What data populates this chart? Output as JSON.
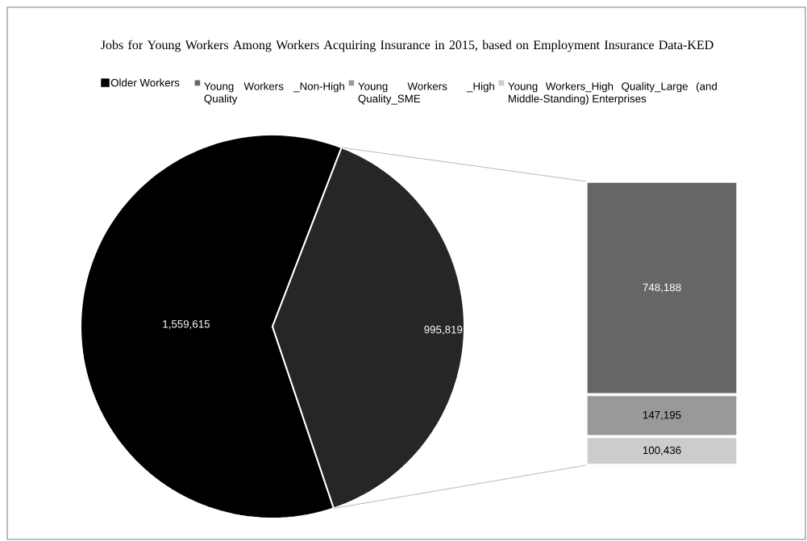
{
  "chart_data": [
    {
      "type": "pie",
      "title": "Jobs for Young Workers Among Workers Acquiring Insurance in 2015, based on Employment Insurance Data-KED",
      "categories": [
        "Older Workers",
        null
      ],
      "values": [
        1559615,
        995819
      ],
      "colors": [
        "#000000",
        "#262626"
      ],
      "value_labels": [
        "1,559,615",
        "995,819"
      ],
      "legend": "top"
    },
    {
      "type": "bar",
      "stacked": true,
      "categories": [
        null
      ],
      "legend": "top",
      "series": [
        {
          "name": "Young Workers_High Quality_Large (and Middle-Standing) Enterprises",
          "color": "#cccccc",
          "values": [
            100436
          ],
          "value_labels": [
            "100,436"
          ]
        },
        {
          "name": "Young Workers _High Quality_SME",
          "color": "#999999",
          "values": [
            147195
          ],
          "value_labels": [
            "147,195"
          ]
        },
        {
          "name": "Young Workers _Non-High Quality",
          "color": "#666666",
          "values": [
            748188
          ],
          "value_labels": [
            "748,188"
          ]
        }
      ]
    }
  ]
}
